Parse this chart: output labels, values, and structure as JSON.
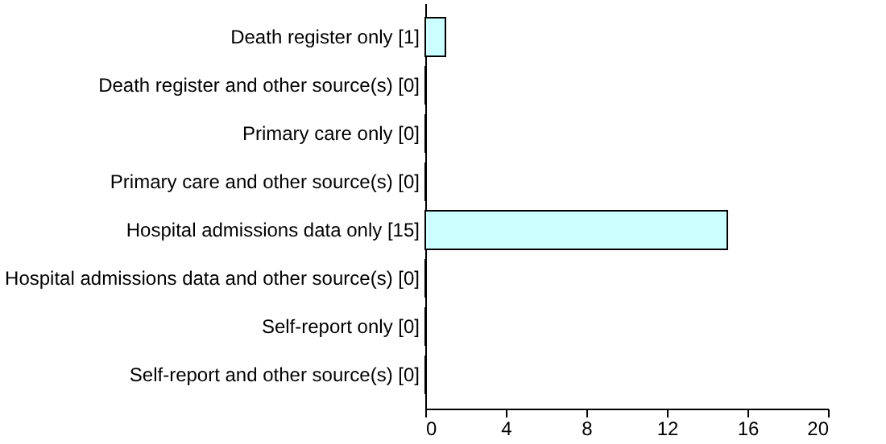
{
  "chart_data": {
    "type": "bar",
    "orientation": "horizontal",
    "categories": [
      "Death register only [1]",
      "Death register and other source(s) [0]",
      "Primary care only [0]",
      "Primary care and other source(s) [0]",
      "Hospital admissions data only [15]",
      "Hospital admissions data and other source(s) [0]",
      "Self-report only [0]",
      "Self-report and other source(s) [0]"
    ],
    "values": [
      1,
      0,
      0,
      0,
      15,
      0,
      0,
      0
    ],
    "color": "#ccffff",
    "xlim": [
      0,
      20
    ],
    "xticks": [
      0,
      4,
      8,
      12,
      16,
      20
    ],
    "grid": false
  }
}
